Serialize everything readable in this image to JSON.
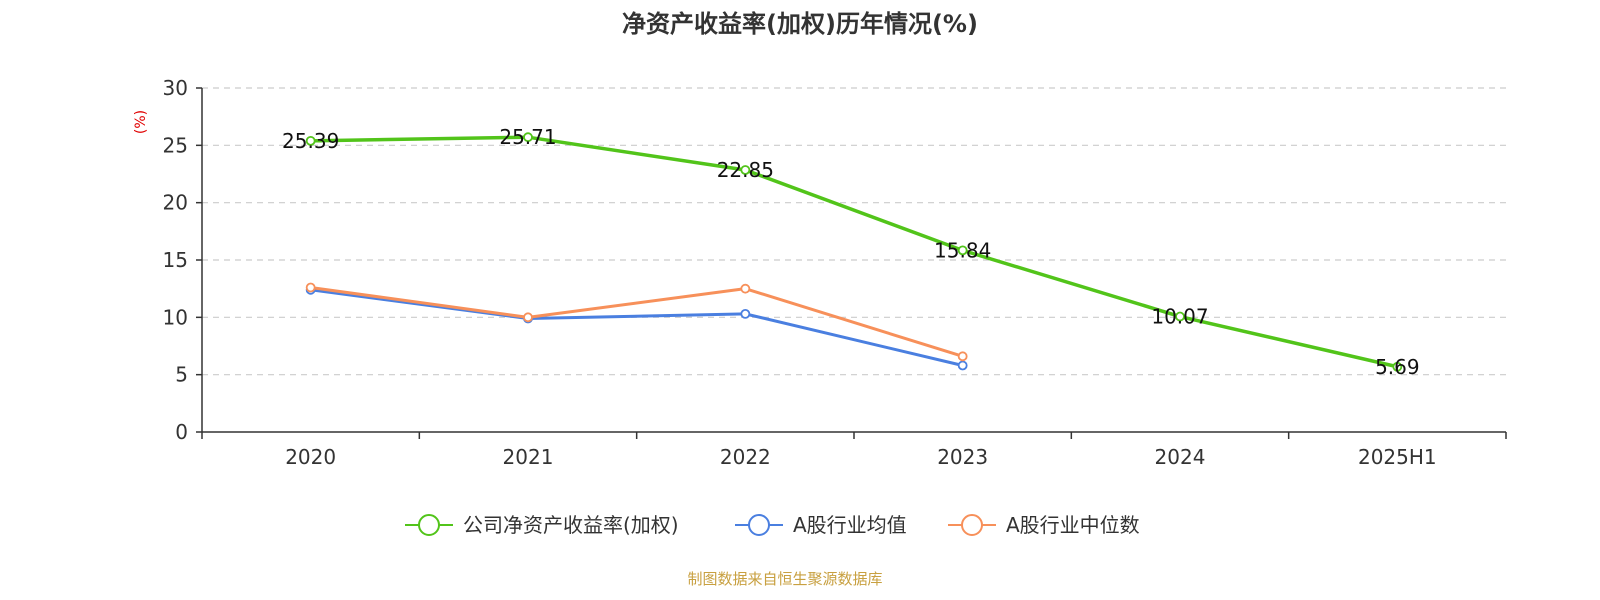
{
  "chart_data": {
    "type": "line",
    "title": "净资产收益率(加权)历年情况(%)",
    "ylabel": "(%)",
    "categories": [
      "2020",
      "2021",
      "2022",
      "2023",
      "2024",
      "2025H1"
    ],
    "ylim": [
      0,
      30
    ],
    "yticks": [
      0,
      5,
      10,
      15,
      20,
      25,
      30
    ],
    "grid": true,
    "legend_position": "bottom",
    "series": [
      {
        "name": "公司净资产收益率(加权)",
        "color": "#52c41a",
        "values": [
          25.39,
          25.71,
          22.85,
          15.84,
          10.07,
          5.69
        ],
        "labels": [
          "25.39",
          "25.71",
          "22.85",
          "15.84",
          "10.07",
          "5.69"
        ]
      },
      {
        "name": "A股行业均值",
        "color": "#4a7fe0",
        "values": [
          12.4,
          9.9,
          10.3,
          5.8,
          null,
          null
        ]
      },
      {
        "name": "A股行业中位数",
        "color": "#f7905a",
        "values": [
          12.6,
          10.0,
          12.5,
          6.6,
          null,
          null
        ]
      }
    ],
    "source": "制图数据来自恒生聚源数据库",
    "source_color": "#c8a040"
  }
}
